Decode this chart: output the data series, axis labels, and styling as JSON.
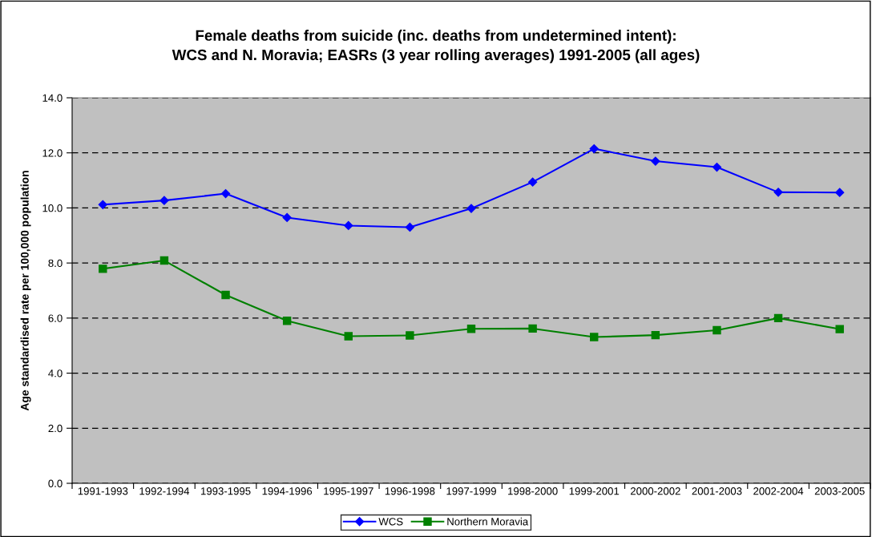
{
  "chart_data": {
    "type": "line",
    "title": "Female deaths from suicide (inc. deaths from undetermined intent):\nWCS and N. Moravia; EASRs (3 year rolling averages) 1991-2005 (all ages)",
    "ylabel": "Age standardised rate per 100,000 population",
    "categories": [
      "1991-1993",
      "1992-1994",
      "1993-1995",
      "1994-1996",
      "1995-1997",
      "1996-1998",
      "1997-1999",
      "1998-2000",
      "1999-2001",
      "2000-2002",
      "2001-2003",
      "2002-2004",
      "2003-2005"
    ],
    "series": [
      {
        "name": "WCS",
        "color": "#0000ff",
        "marker": "diamond",
        "values": [
          10.12,
          10.27,
          10.52,
          9.65,
          9.36,
          9.3,
          9.98,
          10.94,
          12.15,
          11.7,
          11.48,
          10.57,
          10.56
        ]
      },
      {
        "name": "Northern Moravia",
        "color": "#008000",
        "marker": "square",
        "values": [
          7.79,
          8.09,
          6.84,
          5.9,
          5.34,
          5.37,
          5.61,
          5.62,
          5.31,
          5.38,
          5.56,
          6.0,
          5.6
        ]
      }
    ],
    "ylim": [
      0,
      14
    ],
    "yticks": [
      {
        "value": 0,
        "label": "0.0"
      },
      {
        "value": 2,
        "label": "2.0"
      },
      {
        "value": 4,
        "label": "4.0"
      },
      {
        "value": 6,
        "label": "6.0"
      },
      {
        "value": 8,
        "label": "8.0"
      },
      {
        "value": 10,
        "label": "10.0"
      },
      {
        "value": 12,
        "label": "12.0"
      },
      {
        "value": 14,
        "label": "14.0"
      }
    ],
    "grid": "y",
    "legend": "bottom",
    "line_style": "solid"
  }
}
